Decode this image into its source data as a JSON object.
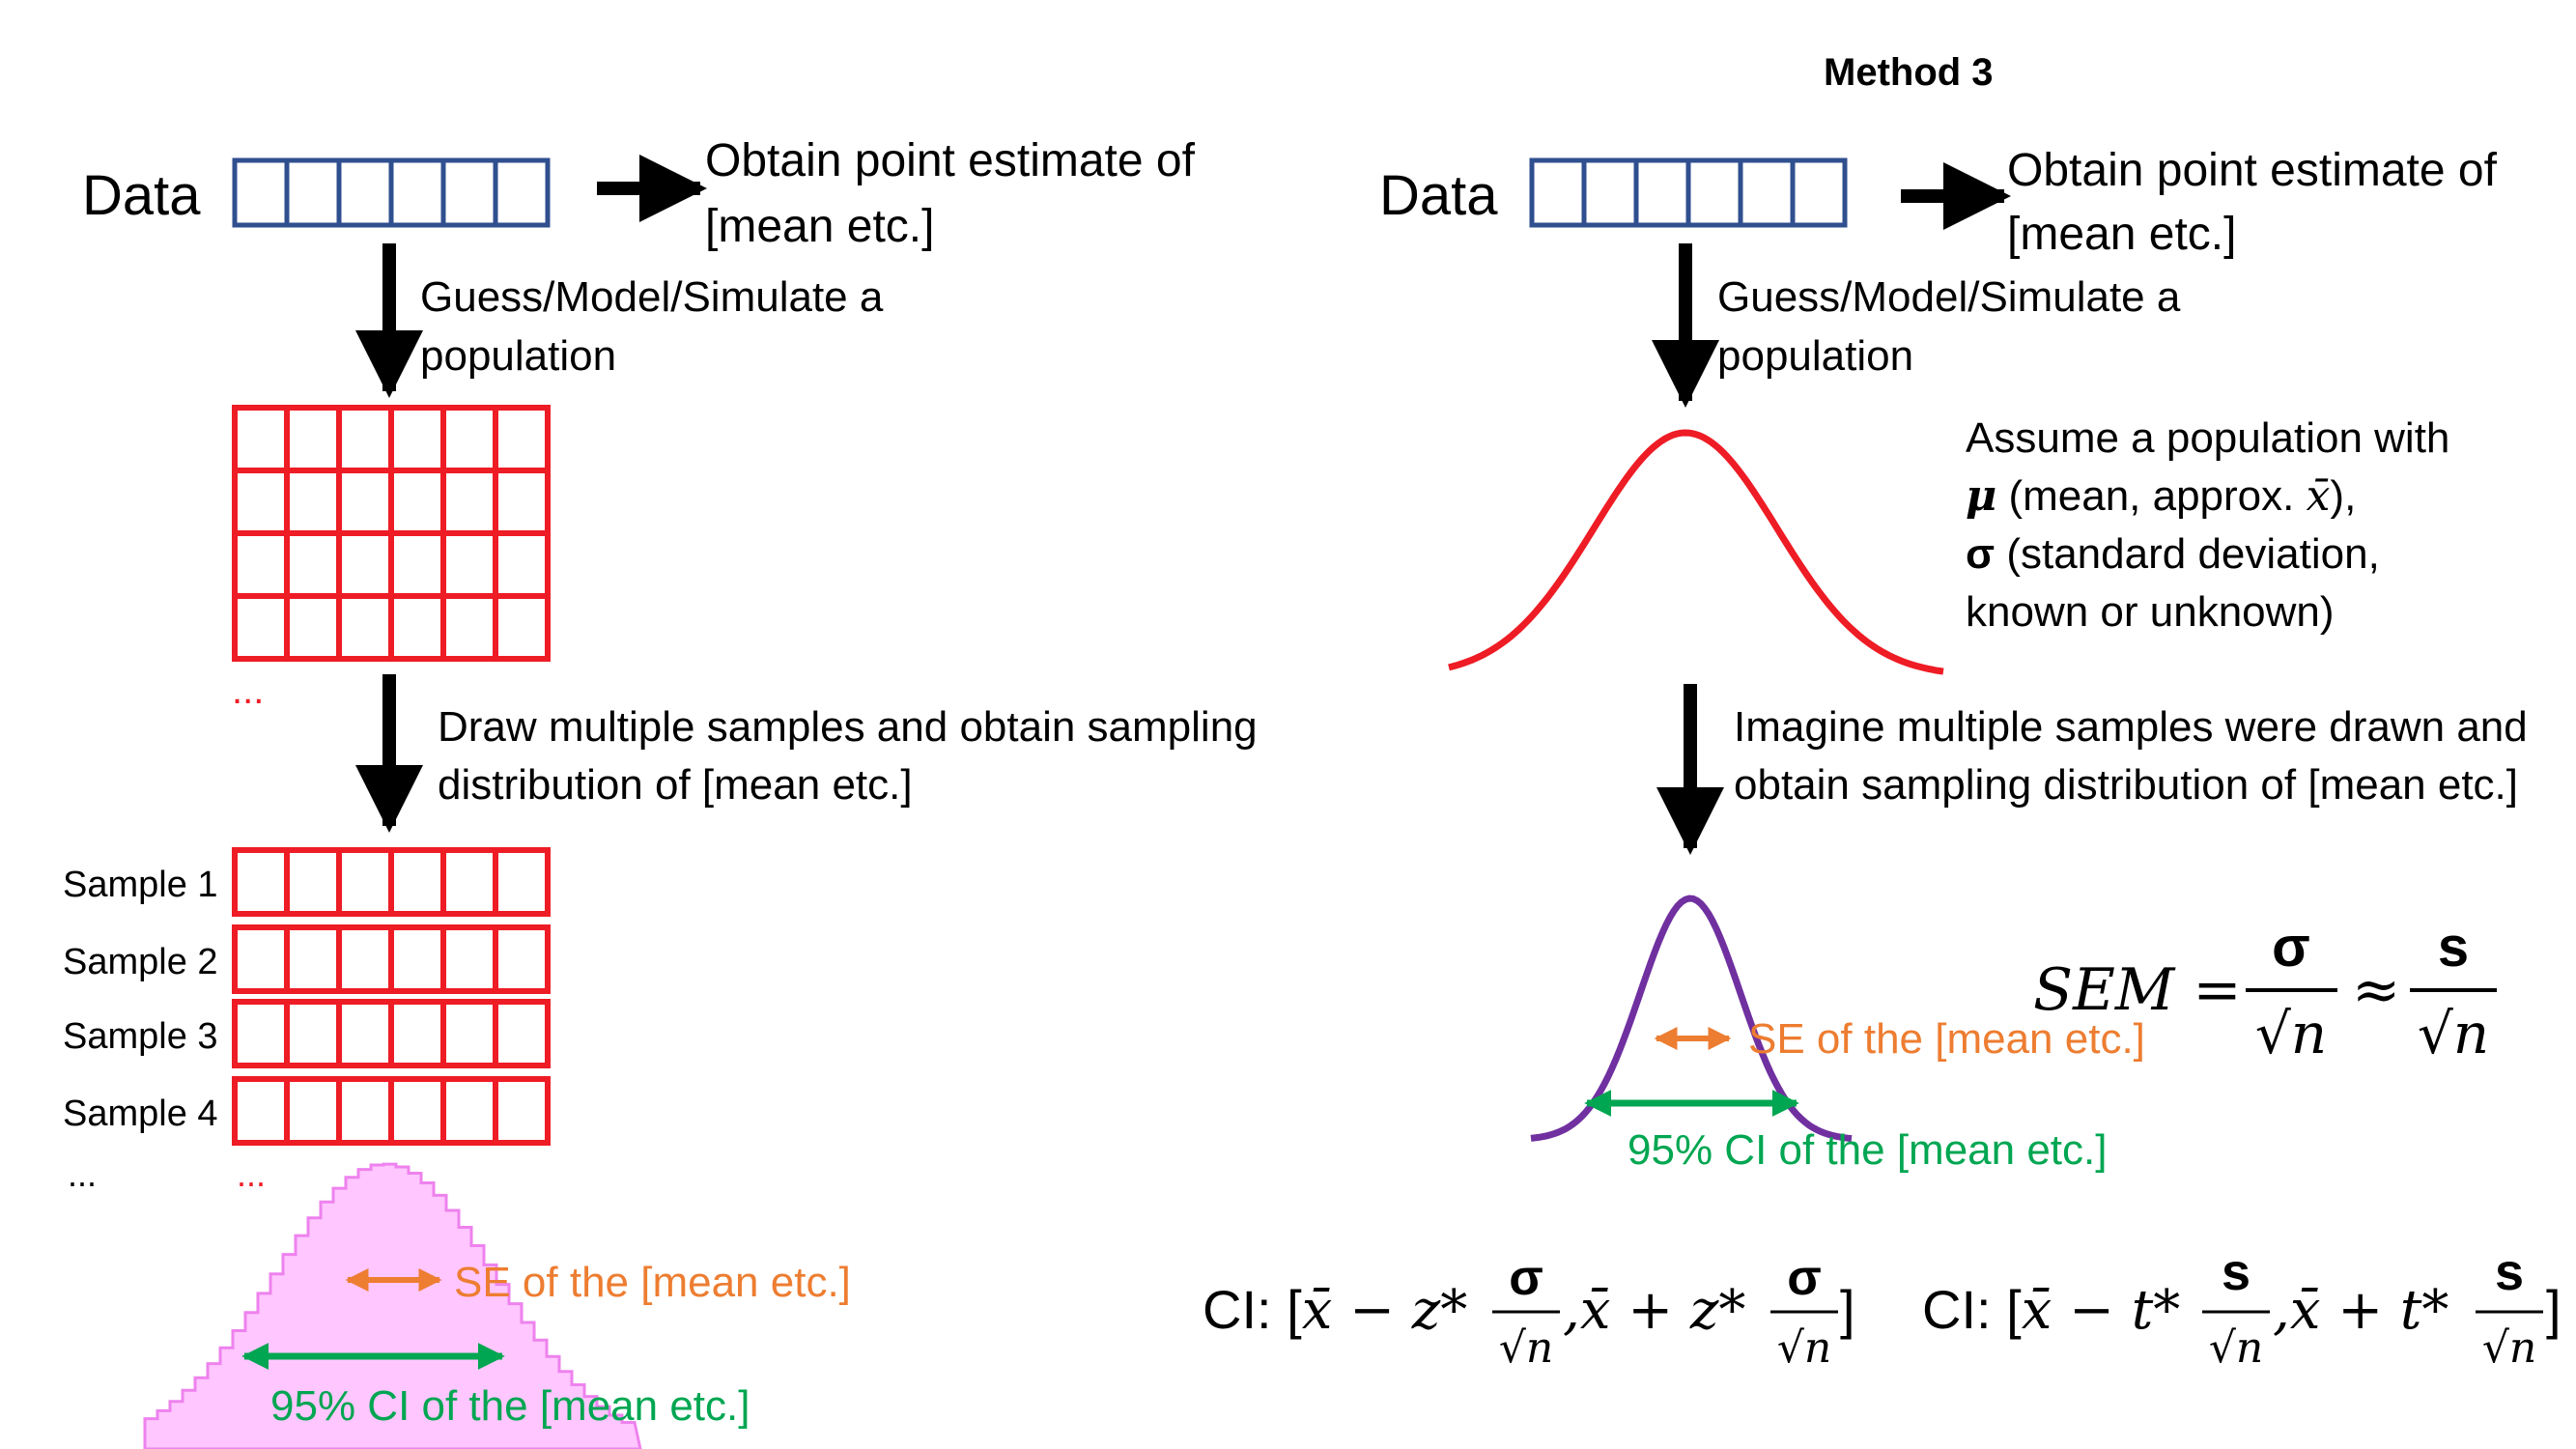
{
  "colors": {
    "data_box": "#2f4f8f",
    "population": "#ee1c25",
    "sampling_curve": "#7030a0",
    "histogram_fill": "#ffc6ff",
    "histogram_stroke": "#ee82ee",
    "se": "#ed7d31",
    "ci": "#00a651",
    "text": "#000000"
  },
  "right_heading": "Method 3",
  "left": {
    "data_label": "Data",
    "point_estimate_line1": "Obtain point estimate of",
    "point_estimate_line2": "[mean etc.]",
    "guess_line1": "Guess/Model/Simulate a",
    "guess_line2": "population",
    "ellipsis_population": "...",
    "draw_line1": "Draw multiple samples and obtain sampling",
    "draw_line2": "distribution of [mean etc.]",
    "samples": [
      "Sample 1",
      "Sample 2",
      "Sample 3",
      "Sample 4"
    ],
    "ellipsis_samples_label": "...",
    "ellipsis_samples_grid": "...",
    "se_label": "SE of the [mean etc.]",
    "ci_label": "95% CI of the [mean etc.]"
  },
  "right": {
    "data_label": "Data",
    "point_estimate_line1": "Obtain point estimate of",
    "point_estimate_line2": "[mean etc.]",
    "guess_line1": "Guess/Model/Simulate a",
    "guess_line2": "population",
    "assume_line1": "Assume a population with",
    "assume_mu": "μ",
    "assume_line2_rest": " (mean, approx. ",
    "assume_xbar": "x̄",
    "assume_line2_end": "),",
    "assume_sigma": "σ",
    "assume_line3_rest": " (standard deviation,",
    "assume_line4": "known or unknown)",
    "imagine_line1": "Imagine multiple samples were drawn and",
    "imagine_line2": "obtain sampling distribution of [mean etc.]",
    "se_label": "SE of the [mean etc.]",
    "ci_label": "95% CI of the [mean etc.]"
  },
  "formulas": {
    "sem_lhs": "SEM =",
    "sigma": "σ",
    "s": "s",
    "sqrt_n": "√n",
    "approx": "≈",
    "ci_prefix": "CI: [",
    "xbar": "x̄",
    "minus_z": " − z*",
    "plus_z": " + z*",
    "minus_t": " − t*",
    "plus_t": " + t*",
    "comma": ",",
    "close": "]"
  }
}
